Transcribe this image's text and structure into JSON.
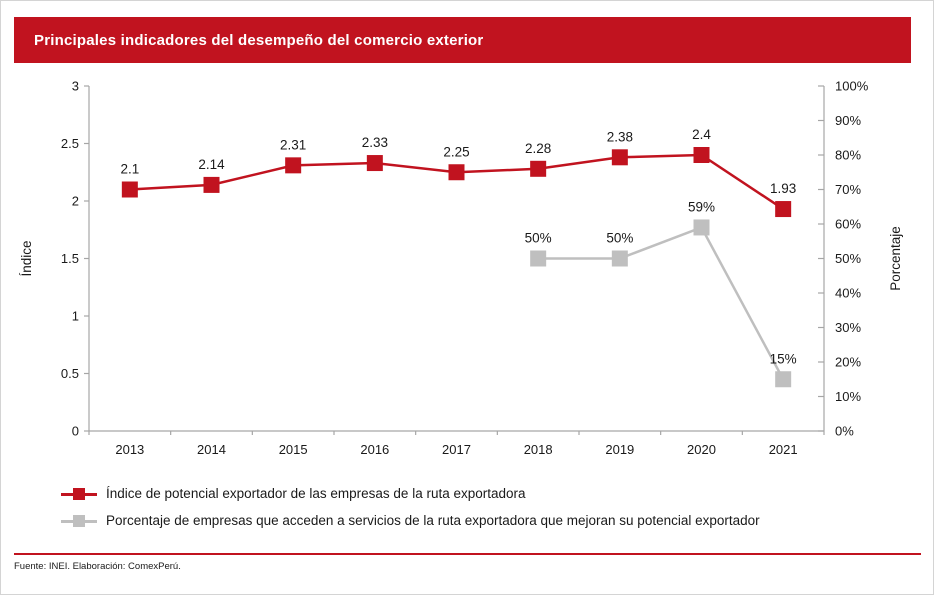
{
  "page": {
    "title": "Principales indicadores del desempeño del comercio exterior",
    "source_note": "Fuente: INEI. Elaboración: ComexPerú."
  },
  "colors": {
    "brand_red": "#c1131f",
    "series_gray": "#bfbfbf",
    "axis_gray": "#a6a6a6",
    "text_black": "#1a1a1a"
  },
  "chart_data": {
    "type": "line",
    "title": "Principales indicadores del desempeño del comercio exterior",
    "categories": [
      "2013",
      "2014",
      "2015",
      "2016",
      "2017",
      "2018",
      "2019",
      "2020",
      "2021"
    ],
    "series": [
      {
        "name": "Índice de potencial exportador de las empresas de la ruta exportadora",
        "axis": "left",
        "color": "#c1131f",
        "marker": "square",
        "values": [
          2.1,
          2.14,
          2.31,
          2.33,
          2.25,
          2.28,
          2.38,
          2.4,
          1.93
        ],
        "labels": [
          "2.1",
          "2.14",
          "2.31",
          "2.33",
          "2.25",
          "2.28",
          "2.38",
          "2.4",
          "1.93"
        ]
      },
      {
        "name": "Porcentaje de empresas que acceden a servicios de la ruta exportadora que mejoran su potencial exportador",
        "axis": "right",
        "color": "#bfbfbf",
        "marker": "square",
        "values": [
          null,
          null,
          null,
          null,
          null,
          50,
          50,
          59,
          15
        ],
        "labels": [
          null,
          null,
          null,
          null,
          null,
          "50%",
          "50%",
          "59%",
          "15%"
        ]
      }
    ],
    "left_axis": {
      "label": "Índice",
      "min": 0,
      "max": 3,
      "step": 0.5,
      "ticks": [
        "0",
        "0.5",
        "1",
        "1.5",
        "2",
        "2.5",
        "3"
      ]
    },
    "right_axis": {
      "label": "Porcentaje",
      "min": 0,
      "max": 100,
      "step": 10,
      "ticks": [
        "0%",
        "10%",
        "20%",
        "30%",
        "40%",
        "50%",
        "60%",
        "70%",
        "80%",
        "90%",
        "100%"
      ]
    },
    "grid": false,
    "legend_position": "bottom-left"
  }
}
